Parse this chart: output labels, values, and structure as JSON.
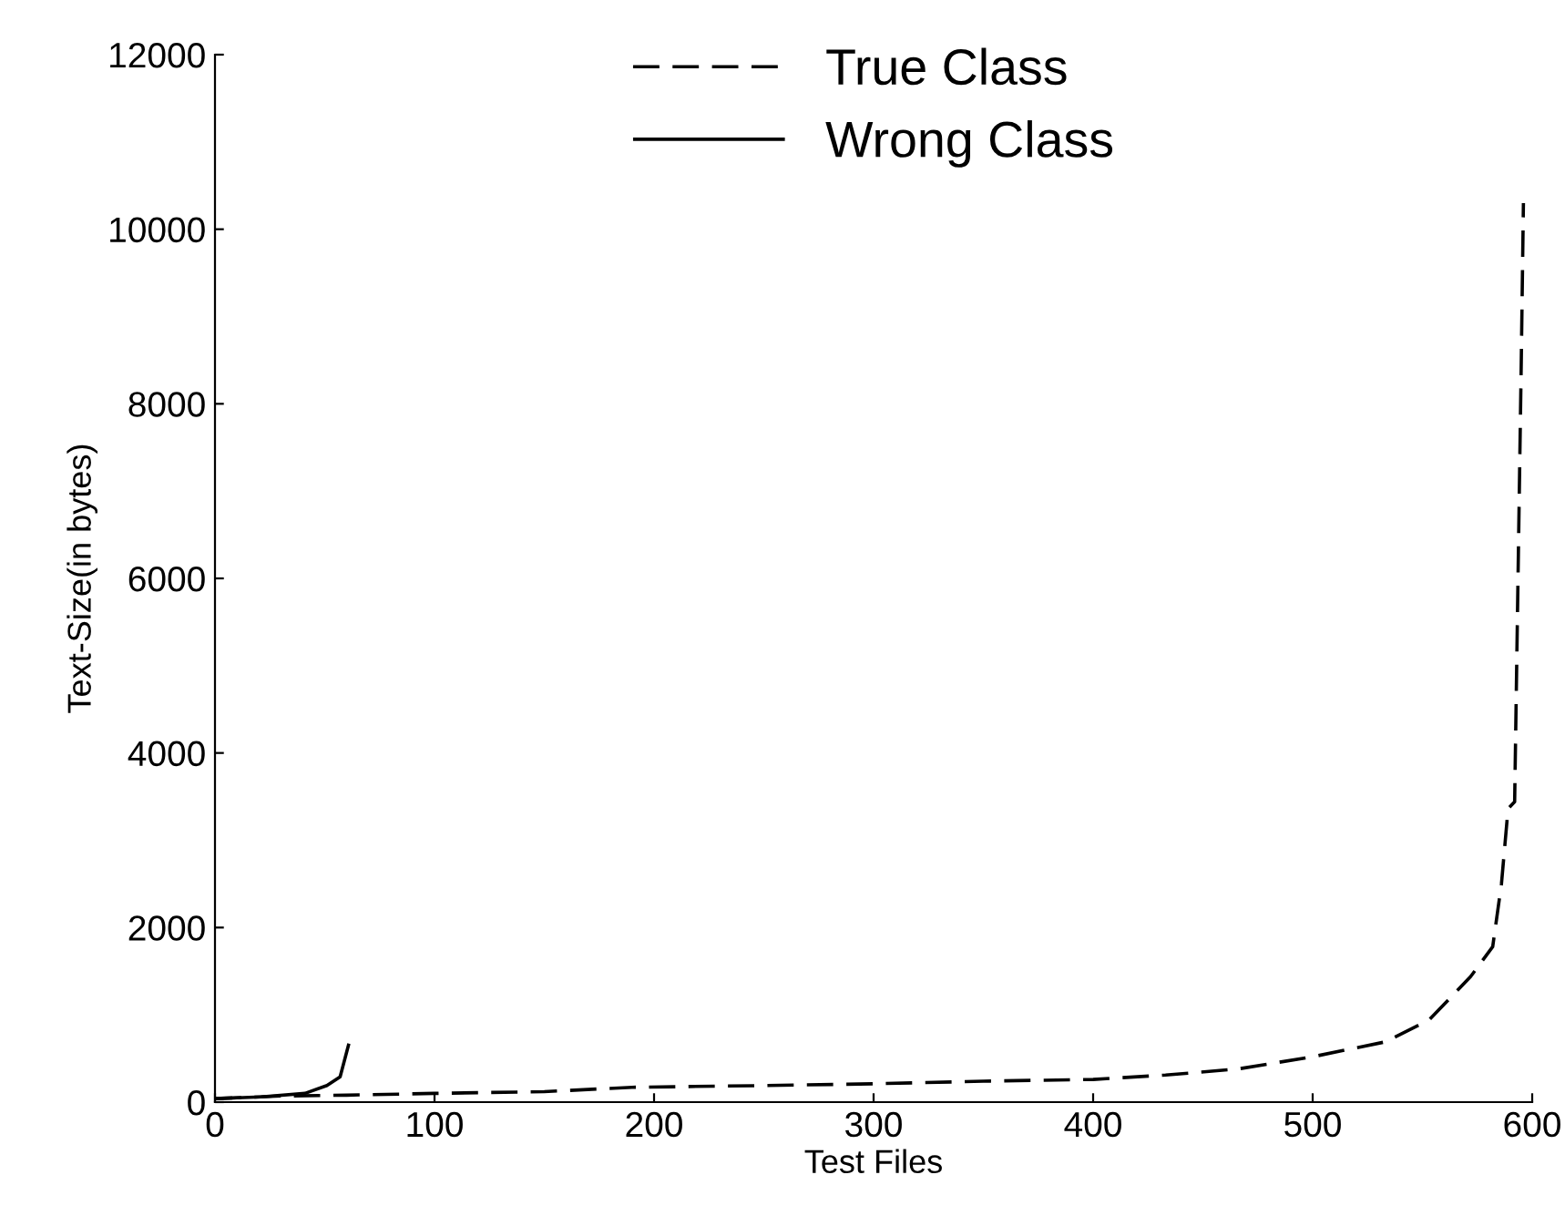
{
  "chart_data": {
    "type": "line",
    "xlabel": "Test Files",
    "ylabel": "Text-Size(in bytes)",
    "xlim": [
      0,
      600
    ],
    "ylim": [
      0,
      12000
    ],
    "xticks": [
      0,
      100,
      200,
      300,
      400,
      500,
      600
    ],
    "yticks": [
      0,
      2000,
      4000,
      6000,
      8000,
      10000,
      12000
    ],
    "grid": false,
    "legend": "top",
    "marker": "none",
    "series": [
      {
        "name": "True Class",
        "color": "#000000",
        "line_style": "dashed",
        "x": [
          0,
          30,
          60,
          100,
          150,
          190,
          250,
          300,
          350,
          400,
          433,
          466,
          500,
          533,
          553,
          572,
          582,
          586,
          589,
          592,
          595,
          596
        ],
        "values": [
          40,
          70,
          80,
          100,
          120,
          170,
          190,
          210,
          240,
          260,
          310,
          380,
          520,
          690,
          940,
          1440,
          1780,
          2500,
          3360,
          3440,
          8450,
          10300
        ]
      },
      {
        "name": "Wrong Class",
        "color": "#000000",
        "line_style": "solid",
        "x": [
          0,
          21,
          41,
          51,
          57,
          59,
          61
        ],
        "values": [
          40,
          60,
          100,
          190,
          290,
          480,
          670
        ]
      }
    ]
  }
}
